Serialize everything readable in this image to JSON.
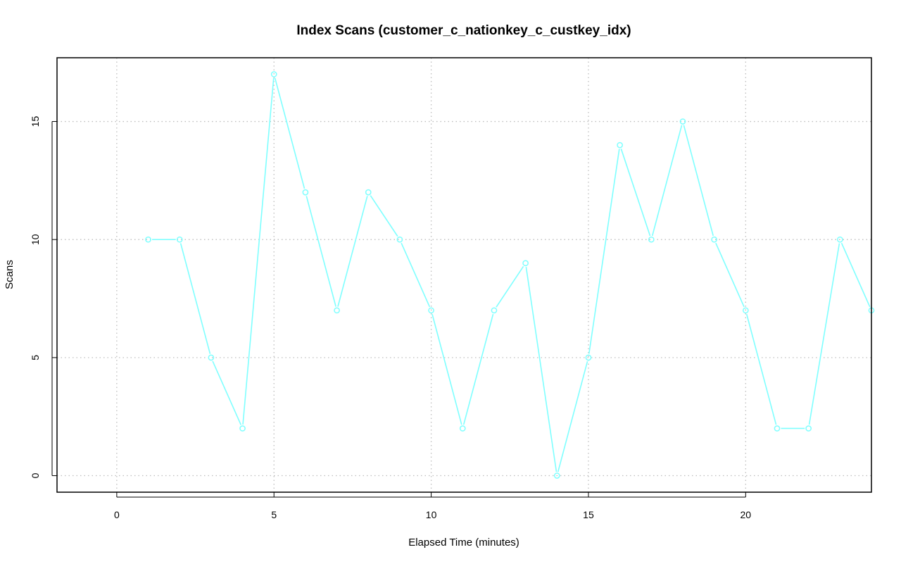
{
  "chart_data": {
    "type": "line",
    "title": "Index Scans (customer_c_nationkey_c_custkey_idx)",
    "xlabel": "Elapsed Time (minutes)",
    "ylabel": "Scans",
    "xlim": [
      -1.9,
      24
    ],
    "ylim": [
      -0.7,
      17.7
    ],
    "xticks": [
      0,
      5,
      10,
      15,
      20
    ],
    "yticks": [
      0,
      5,
      10,
      15
    ],
    "grid": true,
    "marker": "open-circle",
    "series": [
      {
        "color": "#7fffff",
        "x": [
          1,
          2,
          3,
          4,
          5,
          6,
          7,
          8,
          9,
          10,
          11,
          12,
          13,
          14,
          15,
          16,
          17,
          18,
          19,
          20,
          21,
          22,
          23,
          24
        ],
        "y": [
          10,
          10,
          5,
          2,
          17,
          12,
          7,
          12,
          10,
          7,
          2,
          7,
          9,
          0,
          5,
          14,
          10,
          15,
          10,
          7,
          2,
          2,
          10,
          7
        ]
      }
    ]
  }
}
